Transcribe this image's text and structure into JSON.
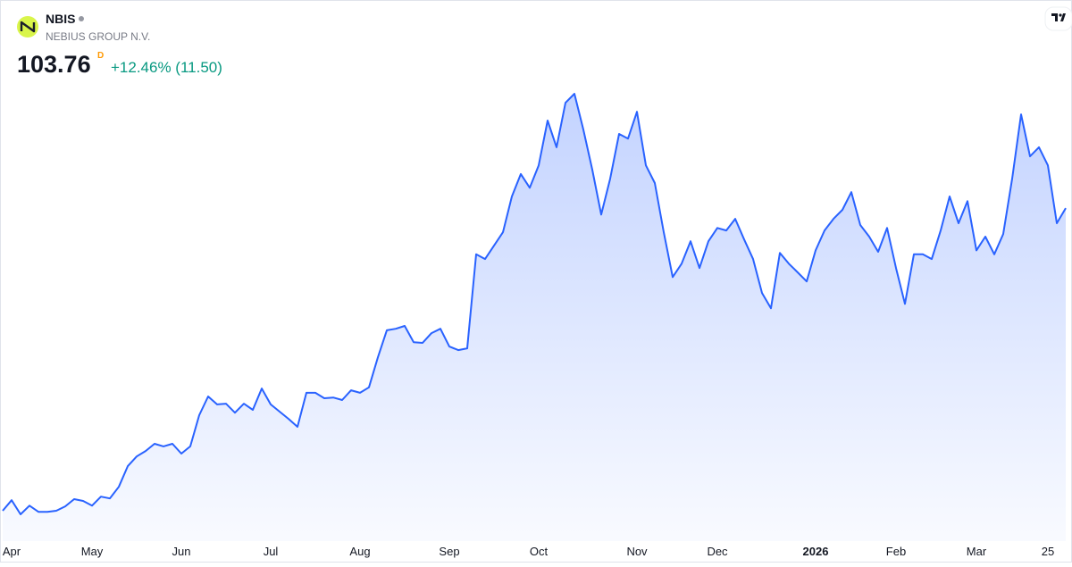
{
  "header": {
    "symbol": "NBIS",
    "company": "NEBIUS GROUP N.V.",
    "last_price": "103.76",
    "interval": "D",
    "change": "+12.46% (11.50)"
  },
  "chart_data": {
    "type": "area",
    "color": "#2962ff",
    "categories": [
      null,
      "Apr",
      null,
      null,
      null,
      null,
      null,
      null,
      null,
      null,
      "May",
      null,
      null,
      null,
      null,
      null,
      null,
      null,
      null,
      null,
      "Jun",
      null,
      null,
      null,
      null,
      null,
      null,
      null,
      null,
      null,
      "Jul",
      null,
      null,
      null,
      null,
      null,
      null,
      null,
      null,
      null,
      "Aug",
      null,
      null,
      null,
      null,
      null,
      null,
      null,
      null,
      null,
      "Sep",
      null,
      null,
      null,
      null,
      null,
      null,
      null,
      null,
      null,
      "Oct",
      null,
      null,
      null,
      null,
      null,
      null,
      null,
      null,
      null,
      null,
      "Nov",
      null,
      null,
      null,
      null,
      null,
      null,
      null,
      null,
      "Dec",
      null,
      null,
      null,
      null,
      null,
      null,
      null,
      null,
      null,
      null,
      "2026",
      null,
      null,
      null,
      null,
      null,
      null,
      null,
      null,
      "Feb",
      null,
      null,
      null,
      null,
      null,
      null,
      null,
      null,
      "Mar",
      null,
      null,
      null,
      null,
      null,
      null,
      null,
      "25",
      null,
      null
    ],
    "values": [
      20.1,
      23.0,
      19.1,
      21.5,
      19.8,
      19.8,
      20.1,
      21.3,
      23.3,
      22.8,
      21.5,
      24.0,
      23.5,
      26.7,
      32.4,
      35.1,
      36.6,
      38.6,
      37.9,
      38.6,
      35.9,
      37.9,
      46.5,
      51.7,
      49.5,
      49.7,
      47.2,
      49.7,
      48.0,
      53.9,
      49.5,
      47.5,
      45.5,
      43.3,
      52.7,
      52.7,
      51.2,
      51.4,
      50.7,
      53.4,
      52.7,
      54.2,
      62.5,
      70.0,
      70.4,
      71.2,
      66.7,
      66.5,
      69.2,
      70.4,
      65.5,
      64.5,
      65.0,
      91.0,
      89.7,
      93.4,
      97.1,
      107.0,
      113.2,
      109.4,
      115.6,
      128.0,
      120.6,
      132.9,
      135.4,
      125.5,
      114.4,
      102.0,
      111.9,
      124.3,
      123.0,
      130.4,
      115.6,
      110.7,
      97.1,
      84.7,
      88.4,
      94.6,
      87.2,
      94.6,
      98.3,
      97.6,
      100.8,
      95.1,
      89.7,
      80.3,
      76.1,
      91.4,
      88.4,
      86.0,
      83.5,
      92.1,
      97.6,
      100.8,
      103.3,
      108.2,
      99.1,
      95.9,
      91.7,
      98.3,
      87.2,
      77.3,
      91.0,
      91.0,
      89.7,
      97.6,
      107.0,
      99.6,
      105.7,
      92.1,
      95.9,
      91.0,
      96.6,
      111.9,
      129.7,
      118.1,
      120.6,
      115.6,
      99.6,
      103.76
    ]
  }
}
